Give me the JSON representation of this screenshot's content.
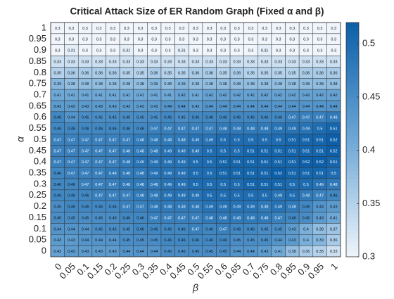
{
  "chart_data": {
    "type": "heatmap",
    "title": "Critical Attack Size of ER Random Graph (Fixed α and β)",
    "x_label": "β",
    "y_label": "α",
    "x_categories": [
      "0",
      "0.05",
      "0.1",
      "0.15",
      "0.2",
      "0.25",
      "0.3",
      "0.35",
      "0.4",
      "0.45",
      "0.5",
      "0.55",
      "0.6",
      "0.65",
      "0.7",
      "0.75",
      "0.8",
      "0.85",
      "0.9",
      "0.95",
      "1"
    ],
    "y_categories": [
      "1",
      "0.95",
      "0.9",
      "0.85",
      "0.8",
      "0.75",
      "0.7",
      "0.65",
      "0.6",
      "0.55",
      "0.5",
      "0.45",
      "0.4",
      "0.35",
      "0.3",
      "0.25",
      "0.2",
      "0.15",
      "0.1",
      "0.05",
      "0"
    ],
    "values": [
      [
        0.3,
        0.3,
        0.3,
        0.3,
        0.3,
        0.3,
        0.3,
        0.3,
        0.3,
        0.3,
        0.3,
        0.3,
        0.3,
        0.3,
        0.3,
        0.3,
        0.3,
        0.3,
        0.3,
        0.3,
        0.3
      ],
      [
        0.3,
        0.3,
        0.3,
        0.3,
        0.3,
        0.3,
        0.3,
        0.3,
        0.3,
        0.3,
        0.3,
        0.3,
        0.3,
        0.3,
        0.3,
        0.3,
        0.3,
        0.3,
        0.3,
        0.3,
        0.3
      ],
      [
        0.3,
        0.31,
        0.3,
        0.3,
        0.3,
        0.31,
        0.3,
        0.3,
        0.3,
        0.31,
        0.3,
        0.3,
        0.3,
        0.3,
        0.3,
        0.31,
        0.3,
        0.3,
        0.3,
        0.3,
        0.3
      ],
      [
        0.33,
        0.33,
        0.33,
        0.33,
        0.33,
        0.33,
        0.33,
        0.33,
        0.33,
        0.33,
        0.33,
        0.33,
        0.33,
        0.33,
        0.33,
        0.33,
        0.33,
        0.33,
        0.33,
        0.33,
        0.33
      ],
      [
        0.35,
        0.36,
        0.36,
        0.36,
        0.36,
        0.35,
        0.35,
        0.36,
        0.35,
        0.35,
        0.36,
        0.36,
        0.35,
        0.36,
        0.35,
        0.35,
        0.35,
        0.35,
        0.36,
        0.36,
        0.36
      ],
      [
        0.39,
        0.38,
        0.38,
        0.38,
        0.38,
        0.38,
        0.38,
        0.39,
        0.38,
        0.39,
        0.38,
        0.38,
        0.38,
        0.38,
        0.38,
        0.38,
        0.38,
        0.38,
        0.38,
        0.38,
        0.38
      ],
      [
        0.41,
        0.41,
        0.41,
        0.41,
        0.41,
        0.41,
        0.41,
        0.41,
        0.41,
        0.42,
        0.41,
        0.42,
        0.42,
        0.42,
        0.42,
        0.42,
        0.42,
        0.42,
        0.42,
        0.42,
        0.42
      ],
      [
        0.43,
        0.43,
        0.43,
        0.43,
        0.43,
        0.43,
        0.43,
        0.43,
        0.44,
        0.44,
        0.43,
        0.44,
        0.44,
        0.44,
        0.44,
        0.44,
        0.44,
        0.44,
        0.44,
        0.44,
        0.44
      ],
      [
        0.46,
        0.44,
        0.45,
        0.45,
        0.45,
        0.45,
        0.45,
        0.45,
        0.46,
        0.45,
        0.46,
        0.46,
        0.46,
        0.46,
        0.46,
        0.46,
        0.46,
        0.47,
        0.47,
        0.47,
        0.48
      ],
      [
        0.46,
        0.46,
        0.46,
        0.46,
        0.46,
        0.46,
        0.46,
        0.47,
        0.47,
        0.47,
        0.47,
        0.47,
        0.48,
        0.48,
        0.48,
        0.48,
        0.49,
        0.49,
        0.49,
        0.5,
        0.51
      ],
      [
        0.47,
        0.47,
        0.47,
        0.47,
        0.47,
        0.47,
        0.48,
        0.48,
        0.48,
        0.48,
        0.49,
        0.49,
        0.5,
        0.5,
        0.5,
        0.5,
        0.5,
        0.51,
        0.51,
        0.51,
        0.52
      ],
      [
        0.47,
        0.47,
        0.47,
        0.47,
        0.47,
        0.48,
        0.48,
        0.48,
        0.49,
        0.49,
        0.49,
        0.5,
        0.5,
        0.5,
        0.51,
        0.51,
        0.51,
        0.51,
        0.51,
        0.51,
        0.52
      ],
      [
        0.47,
        0.47,
        0.47,
        0.47,
        0.47,
        0.48,
        0.49,
        0.49,
        0.49,
        0.49,
        0.5,
        0.5,
        0.51,
        0.51,
        0.51,
        0.51,
        0.51,
        0.51,
        0.52,
        0.52,
        0.51
      ],
      [
        0.46,
        0.47,
        0.47,
        0.47,
        0.48,
        0.48,
        0.48,
        0.49,
        0.49,
        0.49,
        0.5,
        0.5,
        0.51,
        0.51,
        0.51,
        0.51,
        0.52,
        0.51,
        0.51,
        0.51,
        0.5
      ],
      [
        0.46,
        0.46,
        0.47,
        0.47,
        0.47,
        0.48,
        0.48,
        0.48,
        0.49,
        0.49,
        0.5,
        0.5,
        0.5,
        0.5,
        0.51,
        0.51,
        0.51,
        0.5,
        0.5,
        0.49,
        0.48
      ],
      [
        0.46,
        0.46,
        0.46,
        0.47,
        0.47,
        0.47,
        0.48,
        0.48,
        0.49,
        0.49,
        0.49,
        0.5,
        0.5,
        0.5,
        0.5,
        0.5,
        0.49,
        0.5,
        0.48,
        0.47,
        0.46
      ],
      [
        0.45,
        0.46,
        0.46,
        0.46,
        0.46,
        0.47,
        0.47,
        0.48,
        0.48,
        0.48,
        0.48,
        0.49,
        0.49,
        0.49,
        0.49,
        0.48,
        0.49,
        0.48,
        0.46,
        0.44,
        0.43
      ],
      [
        0.45,
        0.45,
        0.45,
        0.45,
        0.45,
        0.46,
        0.46,
        0.47,
        0.47,
        0.47,
        0.47,
        0.48,
        0.48,
        0.48,
        0.48,
        0.48,
        0.47,
        0.46,
        0.45,
        0.43,
        0.41
      ],
      [
        0.44,
        0.44,
        0.44,
        0.45,
        0.45,
        0.45,
        0.46,
        0.46,
        0.46,
        0.46,
        0.47,
        0.46,
        0.47,
        0.46,
        0.46,
        0.45,
        0.45,
        0.43,
        0.4,
        0.38,
        0.37
      ],
      [
        0.43,
        0.43,
        0.44,
        0.44,
        0.44,
        0.45,
        0.45,
        0.45,
        0.46,
        0.46,
        0.46,
        0.46,
        0.46,
        0.45,
        0.45,
        0.45,
        0.44,
        0.43,
        0.4,
        0.39,
        0.36
      ],
      [
        0.42,
        0.43,
        0.43,
        0.43,
        0.43,
        0.44,
        0.44,
        0.44,
        0.45,
        0.45,
        0.45,
        0.45,
        0.45,
        0.44,
        0.44,
        0.43,
        0.41,
        0.38,
        0.36,
        0.35,
        0.33
      ]
    ],
    "clim": [
      0.3,
      0.52
    ],
    "colorbar_ticks": [
      0.3,
      0.35,
      0.4,
      0.45,
      0.5
    ],
    "colormap": [
      "#eff5fb",
      "#6ea8d7",
      "#0c5fa8"
    ]
  }
}
